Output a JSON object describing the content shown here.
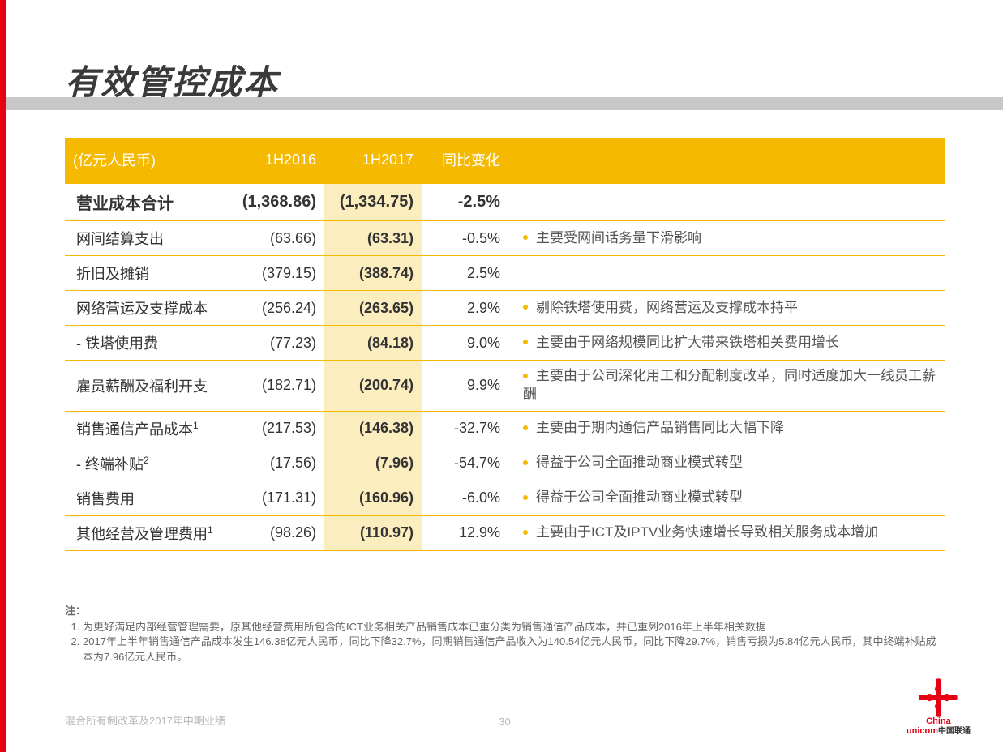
{
  "title": "有效管控成本",
  "accent_color": "#f5b900",
  "highlight_color": "rgba(245,185,0,0.25)",
  "border_color": "#f5b900",
  "table": {
    "unit_header": "(亿元人民币)",
    "col_2016": "1H2016",
    "col_2017": "1H2017",
    "col_yoy": "同比变化",
    "rows": [
      {
        "label": "营业成本合计",
        "v2016": "(1,368.86)",
        "v2017": "(1,334.75)",
        "yoy": "-2.5%",
        "note": "",
        "indent": false,
        "sup": ""
      },
      {
        "label": "网间结算支出",
        "v2016": "(63.66)",
        "v2017": "(63.31)",
        "yoy": "-0.5%",
        "note": "主要受网间话务量下滑影响",
        "indent": true,
        "sup": ""
      },
      {
        "label": "折旧及摊销",
        "v2016": "(379.15)",
        "v2017": "(388.74)",
        "yoy": "2.5%",
        "note": "",
        "indent": true,
        "sup": ""
      },
      {
        "label": "网络营运及支撑成本",
        "v2016": "(256.24)",
        "v2017": "(263.65)",
        "yoy": "2.9%",
        "note": "剔除铁塔使用费，网络营运及支撑成本持平",
        "indent": true,
        "sup": ""
      },
      {
        "label": "- 铁塔使用费",
        "v2016": "(77.23)",
        "v2017": "(84.18)",
        "yoy": "9.0%",
        "note": "主要由于网络规模同比扩大带来铁塔相关费用增长",
        "indent": true,
        "sup": ""
      },
      {
        "label": "雇员薪酬及福利开支",
        "v2016": "(182.71)",
        "v2017": "(200.74)",
        "yoy": "9.9%",
        "note": "主要由于公司深化用工和分配制度改革，同时适度加大一线员工薪酬",
        "indent": true,
        "sup": ""
      },
      {
        "label": "销售通信产品成本",
        "v2016": "(217.53)",
        "v2017": "(146.38)",
        "yoy": "-32.7%",
        "note": "主要由于期内通信产品销售同比大幅下降",
        "indent": true,
        "sup": "1"
      },
      {
        "label": "- 终端补贴",
        "v2016": "(17.56)",
        "v2017": "(7.96)",
        "yoy": "-54.7%",
        "note": "得益于公司全面推动商业模式转型",
        "indent": true,
        "sup": "2"
      },
      {
        "label": "销售费用",
        "v2016": "(171.31)",
        "v2017": "(160.96)",
        "yoy": "-6.0%",
        "note": "得益于公司全面推动商业模式转型",
        "indent": true,
        "sup": ""
      },
      {
        "label": "其他经营及管理费用",
        "v2016": "(98.26)",
        "v2017": "(110.97)",
        "yoy": "12.9%",
        "note": "主要由于ICT及IPTV业务快速增长导致相关服务成本增加",
        "indent": true,
        "sup": "1"
      }
    ]
  },
  "footnotes": {
    "head": "注：",
    "items": [
      "为更好满足内部经营管理需要，原其他经营费用所包含的ICT业务相关产品销售成本已重分类为销售通信产品成本，并已重列2016年上半年相关数据",
      "2017年上半年销售通信产品成本发生146.38亿元人民币，同比下降32.7%，同期销售通信产品收入为140.54亿元人民币，同比下降29.7%，销售亏损为5.84亿元人民币，其中终端补贴成本为7.96亿元人民币。"
    ]
  },
  "footer": {
    "left": "混合所有制改革及2017年中期业绩",
    "page": "30",
    "logo_line1": "China",
    "logo_line2": "unicom",
    "logo_cn": "中国联通"
  }
}
